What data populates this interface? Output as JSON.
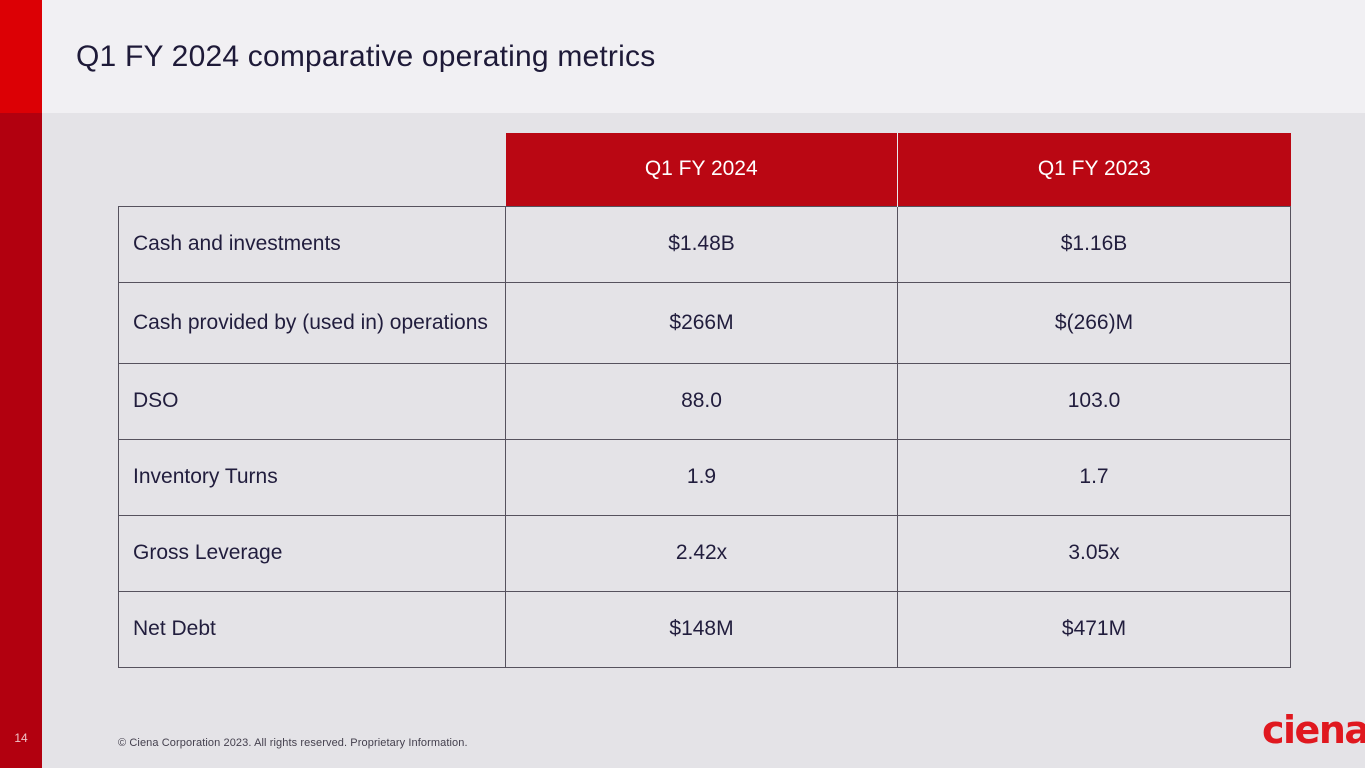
{
  "slide": {
    "title": "Q1 FY 2024 comparative operating metrics",
    "page_number": "14",
    "copyright": "© Ciena Corporation 2023. All rights reserved. Proprietary Information.",
    "logo_text": "ciena",
    "logo_mark": "."
  },
  "colors": {
    "accent_bright_red": "#dc0005",
    "accent_dark_red": "#b2000f",
    "table_header_red": "#ba0713",
    "title_band_bg": "#f1f0f3",
    "body_bg": "#e4e3e7",
    "text_dark": "#211d3d",
    "logo_red": "#e0181f"
  },
  "chart_data": {
    "type": "table",
    "title": "Q1 FY 2024 comparative operating metrics",
    "columns": [
      "Q1 FY 2024",
      "Q1 FY 2023"
    ],
    "rows": [
      {
        "label": "Cash and investments",
        "q1fy2024": "$1.48B",
        "q1fy2023": "$1.16B"
      },
      {
        "label": "Cash provided by (used in) operations",
        "q1fy2024": "$266M",
        "q1fy2023": "$(266)M"
      },
      {
        "label": "DSO",
        "q1fy2024": "88.0",
        "q1fy2023": "103.0"
      },
      {
        "label": "Inventory Turns",
        "q1fy2024": "1.9",
        "q1fy2023": "1.7"
      },
      {
        "label": "Gross Leverage",
        "q1fy2024": "2.42x",
        "q1fy2023": "3.05x"
      },
      {
        "label": "Net Debt",
        "q1fy2024": "$148M",
        "q1fy2023": "$471M"
      }
    ]
  }
}
